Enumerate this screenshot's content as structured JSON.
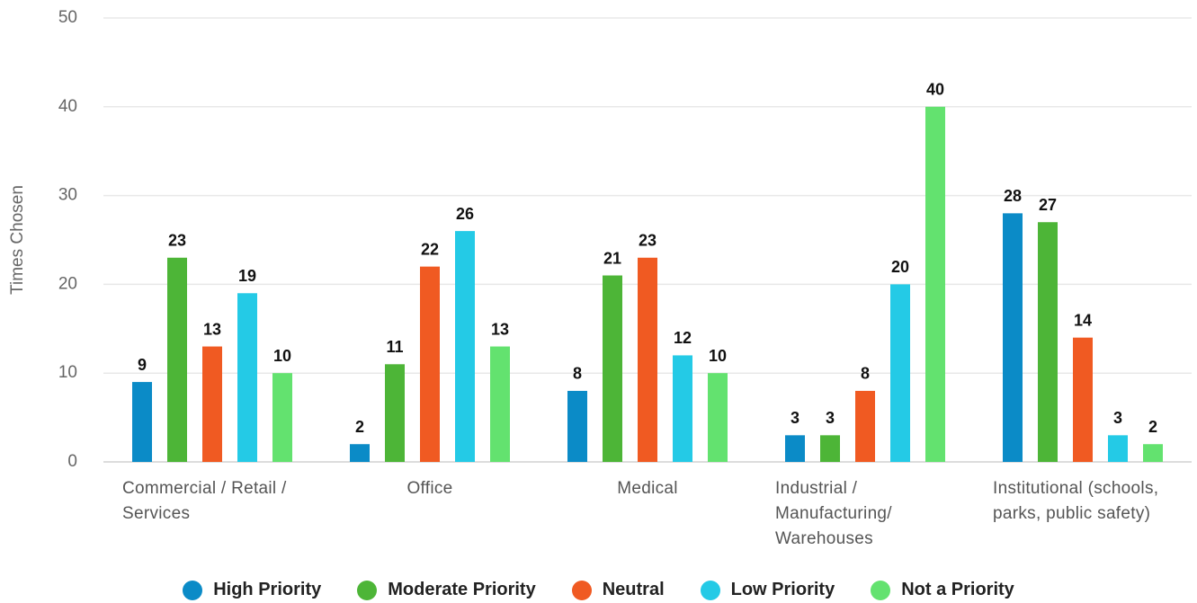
{
  "chart_data": {
    "type": "bar",
    "y_label": "Times Chosen",
    "categories": [
      "Commercial / Retail / Services",
      "Office",
      "Medical",
      "Industrial / Manufacturing/ Warehouses",
      "Institutional (schools, parks, public safety)"
    ],
    "series": [
      {
        "name": "High Priority",
        "color": "#0b8bc7",
        "values": [
          9,
          2,
          8,
          3,
          28
        ]
      },
      {
        "name": "Moderate Priority",
        "color": "#4db537",
        "values": [
          23,
          11,
          21,
          3,
          27
        ]
      },
      {
        "name": "Neutral",
        "color": "#f05a22",
        "values": [
          13,
          22,
          23,
          8,
          14
        ]
      },
      {
        "name": "Low Priority",
        "color": "#24cae6",
        "values": [
          19,
          26,
          12,
          20,
          3
        ]
      },
      {
        "name": "Not a Priority",
        "color": "#63e26f",
        "values": [
          10,
          13,
          10,
          40,
          2
        ]
      }
    ],
    "ylim": [
      0,
      50
    ],
    "yticks": [
      0,
      10,
      20,
      30,
      40,
      50
    ],
    "grid": true,
    "legend": "bottom"
  }
}
